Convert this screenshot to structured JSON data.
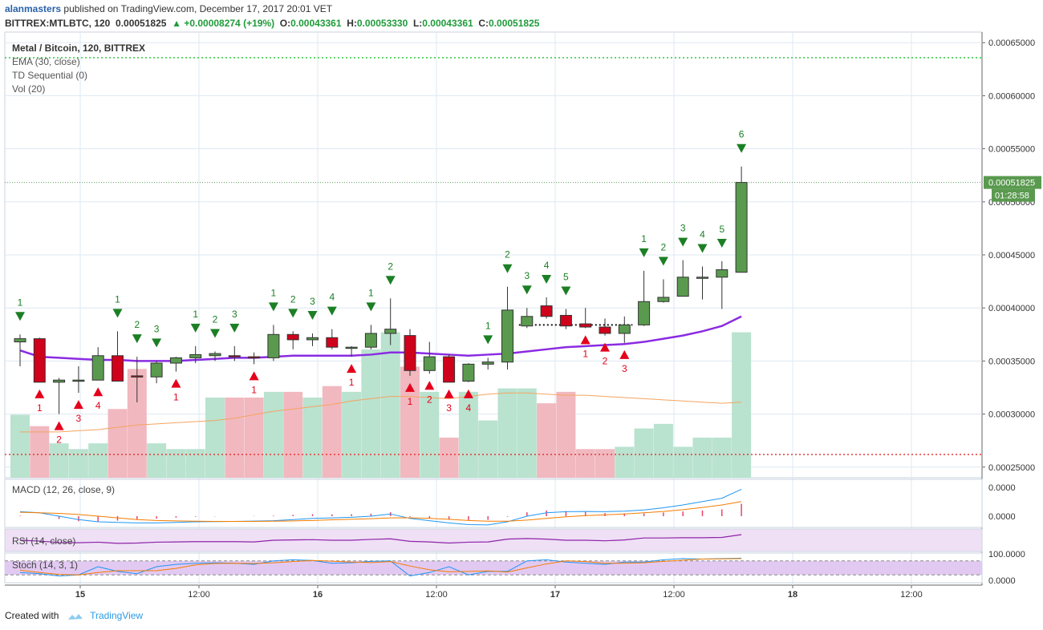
{
  "header": {
    "author": "alanmasters",
    "published_text": "published on TradingView.com, December 17, 2017 20:01 VET",
    "symbol": "BITTREX:MTLBTC, 120",
    "last": "0.00051825",
    "change": "+0.00008274 (+19%)",
    "o_label": "O:",
    "o": "0.00043361",
    "h_label": "H:",
    "h": "0.00053330",
    "l_label": "L:",
    "l": "0.00043361",
    "c_label": "C:",
    "c": "0.00051825"
  },
  "panels": {
    "main_title": "Metal / Bitcoin, 120, BITTREX",
    "indicators": [
      "EMA (30, close)",
      "TD Sequential (0)",
      "Vol (20)"
    ],
    "macd": "MACD (12, 26, close, 9)",
    "rsi": "RSI (14, close)",
    "stoch": "Stoch (14, 3, 1)"
  },
  "footer": {
    "created_with": "Created with",
    "brand": "TradingView"
  },
  "colors": {
    "up": "#5a9a4f",
    "down": "#d0021b",
    "ema": "#8a2be2",
    "vol_up": "#b9e2cf",
    "vol_down": "#f1b8bf",
    "grid": "#dde8f3",
    "td_buy": "#1b7f24",
    "td_sell": "#e4001b"
  },
  "chart_data": {
    "type": "candlestick",
    "symbol": "MTLBTC",
    "exchange": "BITTREX",
    "interval": "120",
    "price_axis": {
      "ticks": [
        "0.00065000",
        "0.00060000",
        "0.00055000",
        "0.00050000",
        "0.00045000",
        "0.00040000",
        "0.00035000",
        "0.00030000",
        "0.00025000"
      ],
      "range": [
        0.00024,
        0.00066
      ],
      "last_price_label": "0.00051825",
      "countdown": "01:28:58"
    },
    "time_axis": [
      "15",
      "12:00",
      "16",
      "12:00",
      "17",
      "12:00",
      "18",
      "12:00"
    ],
    "candles": [
      {
        "o": 0.000368,
        "h": 0.000375,
        "l": 0.000345,
        "c": 0.000371
      },
      {
        "o": 0.000371,
        "h": 0.000372,
        "l": 0.00033,
        "c": 0.00033
      },
      {
        "o": 0.00033,
        "h": 0.000334,
        "l": 0.0003,
        "c": 0.000332
      },
      {
        "o": 0.000331,
        "h": 0.000345,
        "l": 0.00032,
        "c": 0.000332
      },
      {
        "o": 0.000332,
        "h": 0.000363,
        "l": 0.000332,
        "c": 0.000355
      },
      {
        "o": 0.000355,
        "h": 0.000378,
        "l": 0.000331,
        "c": 0.000331
      },
      {
        "o": 0.000336,
        "h": 0.000354,
        "l": 0.000311,
        "c": 0.000335
      },
      {
        "o": 0.000335,
        "h": 0.00035,
        "l": 0.000329,
        "c": 0.000348
      },
      {
        "o": 0.000348,
        "h": 0.000354,
        "l": 0.00034,
        "c": 0.000353
      },
      {
        "o": 0.000353,
        "h": 0.000364,
        "l": 0.000348,
        "c": 0.000356
      },
      {
        "o": 0.000355,
        "h": 0.000359,
        "l": 0.00035,
        "c": 0.000357
      },
      {
        "o": 0.000355,
        "h": 0.000364,
        "l": 0.00035,
        "c": 0.000354
      },
      {
        "o": 0.000354,
        "h": 0.000358,
        "l": 0.000347,
        "c": 0.000353
      },
      {
        "o": 0.000353,
        "h": 0.000384,
        "l": 0.00035,
        "c": 0.000375
      },
      {
        "o": 0.000375,
        "h": 0.000378,
        "l": 0.000361,
        "c": 0.00037
      },
      {
        "o": 0.00037,
        "h": 0.000376,
        "l": 0.000364,
        "c": 0.000372
      },
      {
        "o": 0.000372,
        "h": 0.00038,
        "l": 0.000361,
        "c": 0.000363
      },
      {
        "o": 0.000362,
        "h": 0.000364,
        "l": 0.000354,
        "c": 0.000363
      },
      {
        "o": 0.000363,
        "h": 0.000384,
        "l": 0.000361,
        "c": 0.000376
      },
      {
        "o": 0.000376,
        "h": 0.000409,
        "l": 0.000365,
        "c": 0.00038
      },
      {
        "o": 0.000374,
        "h": 0.00038,
        "l": 0.000336,
        "c": 0.000341
      },
      {
        "o": 0.000341,
        "h": 0.000368,
        "l": 0.000338,
        "c": 0.000354
      },
      {
        "o": 0.000354,
        "h": 0.000356,
        "l": 0.00033,
        "c": 0.00033
      },
      {
        "o": 0.000331,
        "h": 0.000348,
        "l": 0.00033,
        "c": 0.000347
      },
      {
        "o": 0.000347,
        "h": 0.000353,
        "l": 0.000342,
        "c": 0.000349
      },
      {
        "o": 0.000349,
        "h": 0.00042,
        "l": 0.000342,
        "c": 0.000398
      },
      {
        "o": 0.000383,
        "h": 0.0004,
        "l": 0.000381,
        "c": 0.000392
      },
      {
        "o": 0.000402,
        "h": 0.00041,
        "l": 0.00039,
        "c": 0.000392
      },
      {
        "o": 0.000393,
        "h": 0.000399,
        "l": 0.00038,
        "c": 0.000383
      },
      {
        "o": 0.000385,
        "h": 0.0004,
        "l": 0.000381,
        "c": 0.000382
      },
      {
        "o": 0.000382,
        "h": 0.00039,
        "l": 0.000374,
        "c": 0.000376
      },
      {
        "o": 0.000376,
        "h": 0.000392,
        "l": 0.000367,
        "c": 0.000384
      },
      {
        "o": 0.000384,
        "h": 0.000435,
        "l": 0.000383,
        "c": 0.000406
      },
      {
        "o": 0.000406,
        "h": 0.000427,
        "l": 0.000405,
        "c": 0.00041
      },
      {
        "o": 0.000411,
        "h": 0.000445,
        "l": 0.000411,
        "c": 0.000429
      },
      {
        "o": 0.000429,
        "h": 0.000439,
        "l": 0.000408,
        "c": 0.000429
      },
      {
        "o": 0.000429,
        "h": 0.000444,
        "l": 0.000399,
        "c": 0.000436
      },
      {
        "o": 0.00043361,
        "h": 0.0005333,
        "l": 0.00043361,
        "c": 0.00051825
      }
    ],
    "ema30": [
      0.00036,
      0.000354,
      0.000353,
      0.000352,
      0.000351,
      0.000351,
      0.00035,
      0.00035,
      0.00035,
      0.000351,
      0.000352,
      0.000353,
      0.000353,
      0.000354,
      0.000355,
      0.000355,
      0.000355,
      0.000355,
      0.000356,
      0.000358,
      0.000358,
      0.000357,
      0.000356,
      0.000355,
      0.000356,
      0.000357,
      0.000359,
      0.000361,
      0.000363,
      0.000364,
      0.000365,
      0.000366,
      0.000368,
      0.000371,
      0.000374,
      0.000378,
      0.000383,
      0.000392
    ],
    "volume": [
      0.00055,
      0.00045,
      0.0003,
      0.00025,
      0.0003,
      0.0006,
      0.00095,
      0.0003,
      0.00025,
      0.00025,
      0.0007,
      0.0007,
      0.0007,
      0.00075,
      0.00075,
      0.0007,
      0.0008,
      0.00075,
      0.00112,
      0.00127,
      0.00097,
      0.00075,
      0.00035,
      0.00075,
      0.0005,
      0.00078,
      0.00078,
      0.00065,
      0.00075,
      0.00025,
      0.00025,
      0.00027,
      0.00043,
      0.00047,
      0.00027,
      0.00035,
      0.00035,
      0.00127
    ],
    "volume_ma": [
      0.0004,
      0.0004,
      0.0004,
      0.00041,
      0.00042,
      0.00044,
      0.00046,
      0.00047,
      0.00048,
      0.00049,
      0.0005,
      0.00052,
      0.00055,
      0.00058,
      0.0006,
      0.00062,
      0.00064,
      0.00067,
      0.00069,
      0.00071,
      0.00071,
      0.0007,
      0.00069,
      0.00071,
      0.00073,
      0.00074,
      0.00074,
      0.00073,
      0.00072,
      0.00072,
      0.00071,
      0.0007,
      0.00069,
      0.00068,
      0.00067,
      0.00066,
      0.00065,
      0.00066
    ],
    "volume_axis_levels": [
      0.00063,
      0.00027
    ],
    "td_setup": [
      {
        "i": 0,
        "t": "buy",
        "n": "1"
      },
      {
        "i": 1,
        "t": "sell",
        "n": "1"
      },
      {
        "i": 2,
        "t": "sell",
        "n": "2"
      },
      {
        "i": 3,
        "t": "sell",
        "n": "3"
      },
      {
        "i": 4,
        "t": "sell",
        "n": "4"
      },
      {
        "i": 5,
        "t": "buy",
        "n": "1"
      },
      {
        "i": 6,
        "t": "buy",
        "n": "2"
      },
      {
        "i": 7,
        "t": "buy",
        "n": "3"
      },
      {
        "i": 8,
        "t": "sell",
        "n": "1"
      },
      {
        "i": 9,
        "t": "buy",
        "n": "1"
      },
      {
        "i": 10,
        "t": "buy",
        "n": "2"
      },
      {
        "i": 11,
        "t": "buy",
        "n": "3"
      },
      {
        "i": 12,
        "t": "sell",
        "n": "1"
      },
      {
        "i": 13,
        "t": "buy",
        "n": "1"
      },
      {
        "i": 14,
        "t": "buy",
        "n": "2"
      },
      {
        "i": 15,
        "t": "buy",
        "n": "3"
      },
      {
        "i": 16,
        "t": "buy",
        "n": "4"
      },
      {
        "i": 17,
        "t": "sell",
        "n": "1"
      },
      {
        "i": 18,
        "t": "buy",
        "n": "1"
      },
      {
        "i": 19,
        "t": "buy",
        "n": "2"
      },
      {
        "i": 20,
        "t": "sell",
        "n": "1"
      },
      {
        "i": 21,
        "t": "sell",
        "n": "2"
      },
      {
        "i": 22,
        "t": "sell",
        "n": "3"
      },
      {
        "i": 23,
        "t": "sell",
        "n": "4"
      },
      {
        "i": 24,
        "t": "buy",
        "n": "1"
      },
      {
        "i": 25,
        "t": "buy",
        "n": "2"
      },
      {
        "i": 26,
        "t": "buy",
        "n": "3"
      },
      {
        "i": 27,
        "t": "buy",
        "n": "4"
      },
      {
        "i": 28,
        "t": "buy",
        "n": "5"
      },
      {
        "i": 29,
        "t": "sell",
        "n": "1"
      },
      {
        "i": 30,
        "t": "sell",
        "n": "2"
      },
      {
        "i": 31,
        "t": "sell",
        "n": "3"
      },
      {
        "i": 32,
        "t": "buy",
        "n": "1"
      },
      {
        "i": 33,
        "t": "buy",
        "n": "2"
      },
      {
        "i": 34,
        "t": "buy",
        "n": "3"
      },
      {
        "i": 35,
        "t": "buy",
        "n": "4"
      },
      {
        "i": 36,
        "t": "buy",
        "n": "5"
      },
      {
        "i": 37,
        "t": "buy",
        "n": "6"
      }
    ],
    "td_support_level": {
      "from": 26,
      "to": 31,
      "price": 0.000384
    },
    "macd": {
      "ticks": [
        "0.0000",
        "0.0000"
      ],
      "macd": [
        0.4,
        0.3,
        0.0,
        -0.3,
        -0.5,
        -0.55,
        -0.6,
        -0.6,
        -0.55,
        -0.5,
        -0.48,
        -0.46,
        -0.44,
        -0.4,
        -0.3,
        -0.2,
        -0.15,
        -0.1,
        0.0,
        0.2,
        -0.2,
        -0.4,
        -0.6,
        -0.75,
        -0.78,
        -0.5,
        0.0,
        0.3,
        0.4,
        0.42,
        0.4,
        0.45,
        0.55,
        0.75,
        1.0,
        1.3,
        1.6,
        2.4
      ],
      "signal": [
        0.35,
        0.3,
        0.25,
        0.15,
        0.0,
        -0.15,
        -0.3,
        -0.38,
        -0.42,
        -0.45,
        -0.46,
        -0.46,
        -0.46,
        -0.45,
        -0.42,
        -0.38,
        -0.32,
        -0.28,
        -0.22,
        -0.15,
        -0.14,
        -0.2,
        -0.28,
        -0.38,
        -0.45,
        -0.45,
        -0.35,
        -0.2,
        -0.05,
        0.05,
        0.12,
        0.2,
        0.3,
        0.42,
        0.58,
        0.78,
        1.0,
        1.3
      ],
      "hist": [
        0.05,
        0,
        -0.25,
        -0.45,
        -0.5,
        -0.4,
        -0.3,
        -0.22,
        -0.13,
        -0.05,
        -0.02,
        0,
        0.02,
        0.05,
        0.12,
        0.18,
        0.17,
        0.18,
        0.22,
        0.35,
        -0.06,
        -0.2,
        -0.32,
        -0.37,
        -0.33,
        -0.05,
        0.35,
        0.5,
        0.45,
        0.37,
        0.28,
        0.25,
        0.25,
        0.33,
        0.42,
        0.52,
        0.6,
        1.1
      ]
    },
    "rsi": [
      60,
      57,
      52,
      51,
      53,
      49,
      50,
      53,
      54,
      55,
      55,
      55,
      54,
      60,
      61,
      62,
      60,
      60,
      63,
      65,
      56,
      54,
      50,
      53,
      54,
      64,
      66,
      64,
      60,
      60,
      58,
      61,
      68,
      68,
      69,
      69,
      70,
      80
    ],
    "stoch": {
      "k": [
        30,
        25,
        15,
        20,
        55,
        35,
        25,
        55,
        65,
        70,
        72,
        70,
        65,
        80,
        85,
        82,
        70,
        72,
        78,
        80,
        15,
        30,
        55,
        20,
        35,
        35,
        80,
        85,
        75,
        70,
        65,
        75,
        75,
        85,
        90,
        88,
        90,
        92
      ],
      "d": [
        40,
        30,
        22,
        20,
        30,
        38,
        38,
        38,
        48,
        63,
        69,
        70,
        69,
        72,
        77,
        82,
        79,
        75,
        73,
        77,
        58,
        42,
        33,
        35,
        37,
        32,
        50,
        67,
        80,
        77,
        70,
        70,
        72,
        78,
        83,
        88,
        89,
        90
      ],
      "upper": 80,
      "lower": 20,
      "ticks": [
        "100.0000",
        "0.0000"
      ]
    }
  }
}
